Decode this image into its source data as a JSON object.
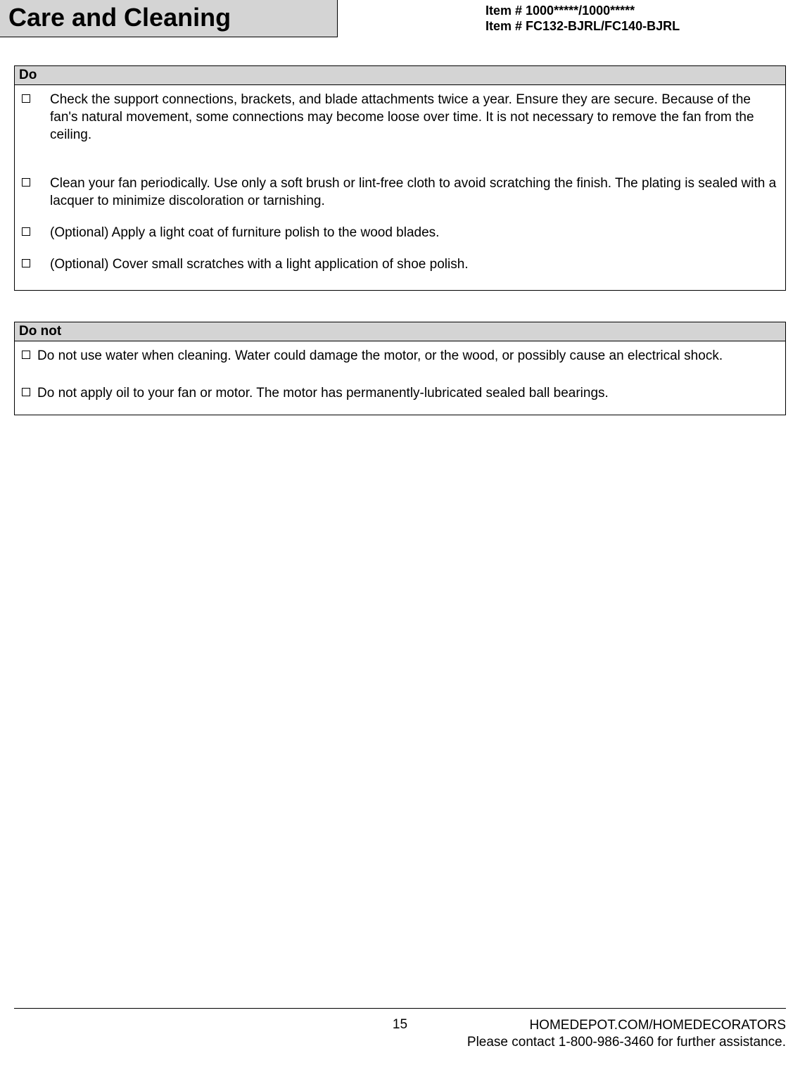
{
  "header": {
    "title": "Care and Cleaning",
    "item_line1": "Item # 1000*****/1000*****",
    "item_line2": "Item # FC132-BJRL/FC140-BJRL"
  },
  "sections": {
    "do": {
      "title": "Do",
      "items": [
        "Check the support connections, brackets, and blade attachments twice a year. Ensure they are secure.  Because of the fan's natural movement, some connections may become loose over time. It is not necessary to remove the fan from the ceiling.",
        "Clean your fan periodically. Use only a soft brush or lint-free cloth to avoid scratching the finish. The plating is sealed with a lacquer to minimize discoloration or tarnishing.",
        " (Optional) Apply a light coat of furniture polish to the wood blades.",
        "(Optional) Cover small scratches with a light application of shoe polish."
      ]
    },
    "donot": {
      "title": "Do not",
      "items": [
        "Do not use water when cleaning. Water could damage the motor, or the wood, or possibly cause an electrical shock.",
        "Do not apply oil to your fan or motor. The motor has permanently-lubricated sealed ball bearings."
      ]
    }
  },
  "footer": {
    "page_number": "15",
    "url": "HOMEDEPOT.COM/HOMEDECORATORS",
    "contact": "Please contact 1-800-986-3460 for further assistance."
  },
  "colors": {
    "header_bg": "#d4d4d4",
    "border": "#000000",
    "page_bg": "#ffffff",
    "text": "#000000"
  }
}
